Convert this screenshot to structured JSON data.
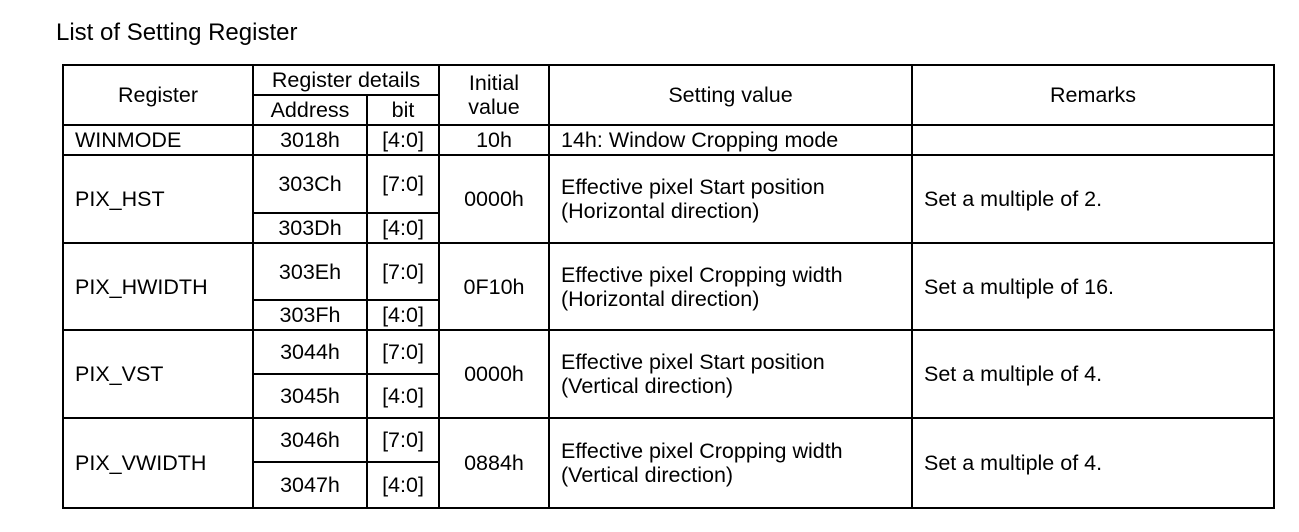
{
  "title": "List of Setting Register",
  "header": {
    "register": "Register",
    "register_details": "Register details",
    "address": "Address",
    "bit": "bit",
    "initial_line1": "Initial",
    "initial_line2": "value",
    "setting_value": "Setting value",
    "remarks": "Remarks"
  },
  "rows": [
    {
      "register": "WINMODE",
      "sub": [
        {
          "address": "3018h",
          "bit": "[4:0]"
        }
      ],
      "initial": "10h",
      "setting_line1": "14h: Window Cropping mode",
      "setting_line2": "",
      "remarks": ""
    },
    {
      "register": "PIX_HST",
      "sub": [
        {
          "address": "303Ch",
          "bit": "[7:0]"
        },
        {
          "address": "303Dh",
          "bit": "[4:0]"
        }
      ],
      "initial": "0000h",
      "setting_line1": "Effective pixel Start position",
      "setting_line2": "(Horizontal direction)",
      "remarks": "Set a multiple of 2."
    },
    {
      "register": "PIX_HWIDTH",
      "sub": [
        {
          "address": "303Eh",
          "bit": "[7:0]"
        },
        {
          "address": "303Fh",
          "bit": "[4:0]"
        }
      ],
      "initial": "0F10h",
      "setting_line1": "Effective pixel Cropping width",
      "setting_line2": "(Horizontal direction)",
      "remarks": "Set a multiple of 16."
    },
    {
      "register": "PIX_VST",
      "sub": [
        {
          "address": "3044h",
          "bit": "[7:0]"
        },
        {
          "address": "3045h",
          "bit": "[4:0]"
        }
      ],
      "initial": "0000h",
      "setting_line1": "Effective pixel Start position",
      "setting_line2": "(Vertical direction)",
      "remarks": "Set a multiple of 4."
    },
    {
      "register": "PIX_VWIDTH",
      "sub": [
        {
          "address": "3046h",
          "bit": "[7:0]"
        },
        {
          "address": "3047h",
          "bit": "[4:0]"
        }
      ],
      "initial": "0884h",
      "setting_line1": "Effective pixel Cropping width",
      "setting_line2": "(Vertical direction)",
      "remarks": "Set a multiple of 4."
    }
  ]
}
